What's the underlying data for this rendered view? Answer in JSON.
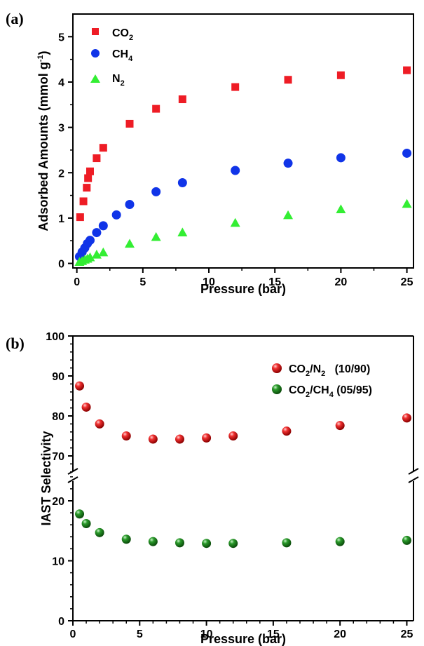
{
  "chart_data": [
    {
      "type": "scatter",
      "panel_label": "(a)",
      "xlabel": "Pressure (bar)",
      "ylabel": "Adsorbed Amounts (mmol g-1)",
      "xlim": [
        -0.3,
        25.5
      ],
      "ylim": [
        -0.1,
        5.5
      ],
      "xticks": [
        0,
        5,
        10,
        15,
        20,
        25
      ],
      "yticks": [
        0,
        1,
        2,
        3,
        4,
        5
      ],
      "grid": false,
      "legend_position": "top-left",
      "series": [
        {
          "name": "CO2",
          "marker": "square",
          "color": "#ee1c25",
          "x": [
            0.25,
            0.5,
            0.75,
            0.85,
            1.0,
            1.5,
            2.0,
            4.0,
            6.0,
            8.0,
            12.0,
            16.0,
            20.0,
            25.0
          ],
          "y": [
            1.02,
            1.37,
            1.67,
            1.88,
            2.03,
            2.32,
            2.55,
            3.08,
            3.41,
            3.62,
            3.89,
            4.05,
            4.15,
            4.26
          ]
        },
        {
          "name": "CH4",
          "marker": "circle",
          "color": "#1034e8",
          "x": [
            0.2,
            0.4,
            0.6,
            0.8,
            1.0,
            1.5,
            2.0,
            3.0,
            4.0,
            6.0,
            8.0,
            12.0,
            16.0,
            20.0,
            25.0
          ],
          "y": [
            0.15,
            0.25,
            0.34,
            0.44,
            0.51,
            0.68,
            0.83,
            1.07,
            1.3,
            1.58,
            1.78,
            2.05,
            2.21,
            2.33,
            2.43
          ]
        },
        {
          "name": "N2",
          "marker": "triangle",
          "color": "#33ee33",
          "x": [
            0.2,
            0.4,
            0.6,
            0.8,
            1.0,
            1.5,
            2.0,
            4.0,
            6.0,
            8.0,
            12.0,
            16.0,
            20.0,
            25.0
          ],
          "y": [
            0.03,
            0.05,
            0.08,
            0.1,
            0.13,
            0.19,
            0.24,
            0.43,
            0.58,
            0.68,
            0.89,
            1.06,
            1.19,
            1.31
          ]
        }
      ]
    },
    {
      "type": "scatter",
      "panel_label": "(b)",
      "xlabel": "Pressure (bar)",
      "ylabel": "IAST Selectivity",
      "xlim": [
        0,
        25.5
      ],
      "y_axis_break": {
        "lower_range": [
          0,
          24
        ],
        "upper_range": [
          65,
          100
        ]
      },
      "xticks": [
        0,
        5,
        10,
        15,
        20,
        25
      ],
      "yticks": [
        0,
        10,
        20,
        70,
        80,
        90,
        100
      ],
      "grid": false,
      "legend_position": "top-right",
      "series": [
        {
          "name": "CO2/N2 (10/90)",
          "marker": "sphere",
          "color": "#e81818",
          "x": [
            0.5,
            1.0,
            2.0,
            4.0,
            6.0,
            8.0,
            10.0,
            12.0,
            16.0,
            20.0,
            25.0
          ],
          "y": [
            87.5,
            82.2,
            78.0,
            75.0,
            74.2,
            74.2,
            74.5,
            75.0,
            76.2,
            77.6,
            79.5
          ]
        },
        {
          "name": "CO2/CH4 (05/95)",
          "marker": "sphere",
          "color": "#1b8a1b",
          "x": [
            0.5,
            1.0,
            2.0,
            4.0,
            6.0,
            8.0,
            10.0,
            12.0,
            16.0,
            20.0,
            25.0
          ],
          "y": [
            17.8,
            16.2,
            14.7,
            13.6,
            13.2,
            13.0,
            12.9,
            12.9,
            13.0,
            13.2,
            13.4
          ]
        }
      ]
    }
  ]
}
